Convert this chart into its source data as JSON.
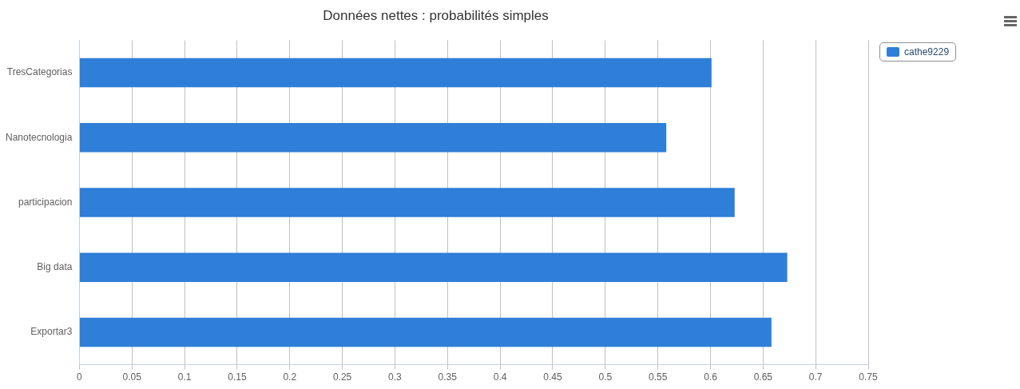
{
  "chart_data": {
    "type": "bar",
    "orientation": "horizontal",
    "title": "Données nettes : probabilités simples",
    "categories": [
      "TresCategorias",
      "Nanotecnologia",
      "participacion",
      "Big data",
      "Exportar3"
    ],
    "series": [
      {
        "name": "cathe9229",
        "color": "#2f7ed8",
        "values": [
          0.601,
          0.558,
          0.623,
          0.673,
          0.658
        ]
      }
    ],
    "xlim": [
      0,
      0.75
    ],
    "xticks": [
      0,
      0.05,
      0.1,
      0.15,
      0.2,
      0.25,
      0.3,
      0.35,
      0.4,
      0.45,
      0.5,
      0.55,
      0.6,
      0.65,
      0.7,
      0.75
    ],
    "grid": "x",
    "legend": "top right"
  }
}
